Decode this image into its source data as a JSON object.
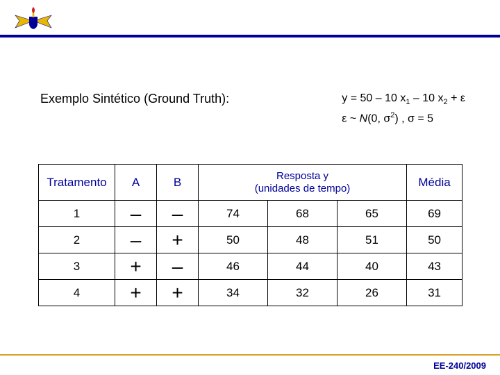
{
  "title": "Exemplo Sintético (Ground Truth):",
  "equation": {
    "line1_pre": "y = 50 – 10 x",
    "line1_sub1": "1",
    "line1_mid": " – 10 x",
    "line1_sub2": "2",
    "line1_post": " + ε",
    "line2_pre": "ε ~ ",
    "line2_N": "N",
    "line2_args": "(0, σ",
    "line2_sup": "2",
    "line2_post": ") ,  σ = 5"
  },
  "table": {
    "headers": {
      "tratamento": "Tratamento",
      "a": "A",
      "b": "B",
      "resposta_l1": "Resposta y",
      "resposta_l2": "(unidades de tempo)",
      "media": "Média"
    },
    "rows": [
      {
        "t": "1",
        "a": "–",
        "b": "–",
        "y": [
          "74",
          "68",
          "65"
        ],
        "m": "69"
      },
      {
        "t": "2",
        "a": "–",
        "b": "+",
        "y": [
          "50",
          "48",
          "51"
        ],
        "m": "50"
      },
      {
        "t": "3",
        "a": "+",
        "b": "–",
        "y": [
          "46",
          "44",
          "40"
        ],
        "m": "43"
      },
      {
        "t": "4",
        "a": "+",
        "b": "+",
        "y": [
          "34",
          "32",
          "26"
        ],
        "m": "31"
      }
    ]
  },
  "footer": "EE-240/2009",
  "colors": {
    "rule_top": "#000099",
    "rule_bottom": "#d8a028",
    "header_text": "#000099",
    "footer_text": "#000099"
  }
}
